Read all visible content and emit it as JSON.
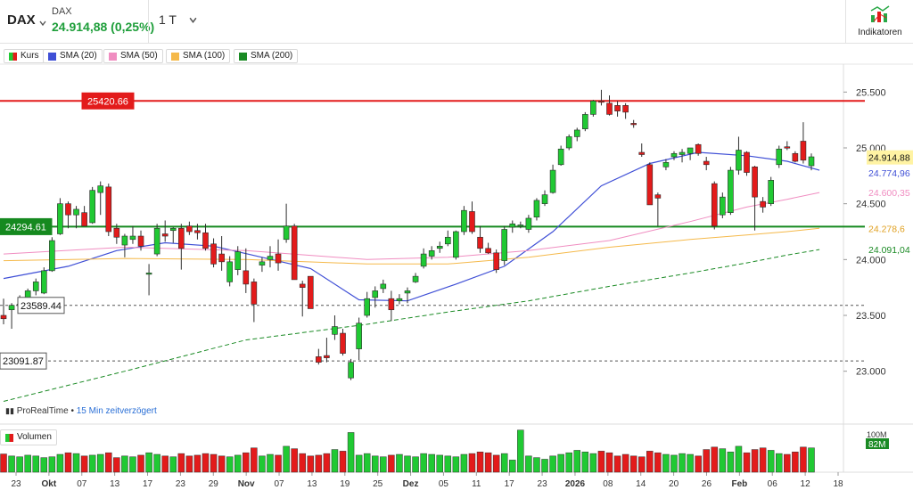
{
  "header": {
    "symbol": "DAX",
    "name": "DAX",
    "price_change": "24.914,88 (0,25%)",
    "period": "1 T",
    "period_icon": "chevron-down-icon",
    "indicators_label": "Indikatoren",
    "indicators_icon": "indicators-icon"
  },
  "legend": {
    "items": [
      {
        "label": "Kurs",
        "color": "#20c933",
        "color2": "#e31b1b"
      },
      {
        "label": "SMA (20)",
        "color": "#3f4fd6"
      },
      {
        "label": "SMA (50)",
        "color": "#f08dc1"
      },
      {
        "label": "SMA (100)",
        "color": "#f5b94a"
      },
      {
        "label": "SMA (200)",
        "color": "#1a8a24"
      }
    ],
    "volume": "Volumen"
  },
  "source": {
    "name": "ProRealTime",
    "delay": "15 Min zeitverzögert"
  },
  "chart_data": {
    "type": "candlestick",
    "x_tick_labels": [
      "23",
      "Okt",
      "07",
      "13",
      "17",
      "23",
      "29",
      "Nov",
      "07",
      "13",
      "19",
      "25",
      "Dez",
      "05",
      "11",
      "17",
      "23",
      "2026",
      "08",
      "14",
      "20",
      "26",
      "Feb",
      "06",
      "12",
      "18"
    ],
    "y_ticks": [
      "25.500",
      "25.000",
      "24.500",
      "24.000",
      "23.500",
      "23.000"
    ],
    "ylim": [
      22750,
      25750
    ],
    "candles": [
      {
        "o": 23500,
        "h": 23650,
        "l": 23420,
        "c": 23470
      },
      {
        "o": 23550,
        "h": 23610,
        "l": 23380,
        "c": 23590
      },
      {
        "o": 23590,
        "h": 23680,
        "l": 23520,
        "c": 23600
      },
      {
        "o": 23560,
        "h": 23740,
        "l": 23550,
        "c": 23720
      },
      {
        "o": 23720,
        "h": 23830,
        "l": 23680,
        "c": 23800
      },
      {
        "o": 23700,
        "h": 23930,
        "l": 23690,
        "c": 23900
      },
      {
        "o": 23900,
        "h": 24200,
        "l": 23890,
        "c": 24170
      },
      {
        "o": 24230,
        "h": 24550,
        "l": 24220,
        "c": 24500
      },
      {
        "o": 24500,
        "h": 24520,
        "l": 24280,
        "c": 24400
      },
      {
        "o": 24400,
        "h": 24480,
        "l": 24280,
        "c": 24450
      },
      {
        "o": 24420,
        "h": 24480,
        "l": 24300,
        "c": 24300
      },
      {
        "o": 24330,
        "h": 24650,
        "l": 24320,
        "c": 24620
      },
      {
        "o": 24600,
        "h": 24700,
        "l": 24400,
        "c": 24660
      },
      {
        "o": 24650,
        "h": 24680,
        "l": 24210,
        "c": 24250
      },
      {
        "o": 24280,
        "h": 24320,
        "l": 24140,
        "c": 24200
      },
      {
        "o": 24130,
        "h": 24230,
        "l": 24020,
        "c": 24210
      },
      {
        "o": 24180,
        "h": 24300,
        "l": 24140,
        "c": 24210
      },
      {
        "o": 24210,
        "h": 24260,
        "l": 24080,
        "c": 24120
      },
      {
        "o": 23880,
        "h": 23960,
        "l": 23680,
        "c": 23880
      },
      {
        "o": 24050,
        "h": 24320,
        "l": 24030,
        "c": 24280
      },
      {
        "o": 24230,
        "h": 24350,
        "l": 24160,
        "c": 24210
      },
      {
        "o": 24260,
        "h": 24290,
        "l": 24150,
        "c": 24280
      },
      {
        "o": 24280,
        "h": 24320,
        "l": 23910,
        "c": 24100
      },
      {
        "o": 24300,
        "h": 24340,
        "l": 24220,
        "c": 24250
      },
      {
        "o": 24260,
        "h": 24320,
        "l": 24180,
        "c": 24240
      },
      {
        "o": 24240,
        "h": 24320,
        "l": 24080,
        "c": 24100
      },
      {
        "o": 24140,
        "h": 24190,
        "l": 23930,
        "c": 23960
      },
      {
        "o": 24050,
        "h": 24210,
        "l": 23900,
        "c": 23980
      },
      {
        "o": 23800,
        "h": 24030,
        "l": 23760,
        "c": 23980
      },
      {
        "o": 23910,
        "h": 24120,
        "l": 23860,
        "c": 24070
      },
      {
        "o": 23900,
        "h": 24100,
        "l": 23700,
        "c": 23780
      },
      {
        "o": 23800,
        "h": 23830,
        "l": 23440,
        "c": 23600
      },
      {
        "o": 23950,
        "h": 24020,
        "l": 23890,
        "c": 23980
      },
      {
        "o": 24000,
        "h": 24120,
        "l": 23930,
        "c": 24030
      },
      {
        "o": 24050,
        "h": 24180,
        "l": 23900,
        "c": 23970
      },
      {
        "o": 24180,
        "h": 24500,
        "l": 24150,
        "c": 24300
      },
      {
        "o": 24300,
        "h": 24320,
        "l": 23820,
        "c": 23820
      },
      {
        "o": 23780,
        "h": 23810,
        "l": 23490,
        "c": 23750
      },
      {
        "o": 23850,
        "h": 23850,
        "l": 23560,
        "c": 23560
      },
      {
        "o": 23130,
        "h": 23200,
        "l": 23060,
        "c": 23080
      },
      {
        "o": 23140,
        "h": 23300,
        "l": 23080,
        "c": 23120
      },
      {
        "o": 23330,
        "h": 23500,
        "l": 23280,
        "c": 23400
      },
      {
        "o": 23340,
        "h": 23380,
        "l": 23140,
        "c": 23160
      },
      {
        "o": 22940,
        "h": 23110,
        "l": 22920,
        "c": 23080
      },
      {
        "o": 23200,
        "h": 23480,
        "l": 23100,
        "c": 23430
      },
      {
        "o": 23500,
        "h": 23710,
        "l": 23480,
        "c": 23650
      },
      {
        "o": 23660,
        "h": 23760,
        "l": 23570,
        "c": 23720
      },
      {
        "o": 23740,
        "h": 23820,
        "l": 23700,
        "c": 23780
      },
      {
        "o": 23650,
        "h": 23720,
        "l": 23450,
        "c": 23550
      },
      {
        "o": 23630,
        "h": 23690,
        "l": 23600,
        "c": 23650
      },
      {
        "o": 23700,
        "h": 23750,
        "l": 23610,
        "c": 23720
      },
      {
        "o": 23800,
        "h": 23880,
        "l": 23790,
        "c": 23850
      },
      {
        "o": 23940,
        "h": 24100,
        "l": 23920,
        "c": 24050
      },
      {
        "o": 24030,
        "h": 24120,
        "l": 24000,
        "c": 24080
      },
      {
        "o": 24100,
        "h": 24160,
        "l": 24060,
        "c": 24120
      },
      {
        "o": 24140,
        "h": 24260,
        "l": 24120,
        "c": 24200
      },
      {
        "o": 24020,
        "h": 24260,
        "l": 24000,
        "c": 24250
      },
      {
        "o": 24250,
        "h": 24480,
        "l": 24220,
        "c": 24440
      },
      {
        "o": 24430,
        "h": 24520,
        "l": 24230,
        "c": 24250
      },
      {
        "o": 24200,
        "h": 24300,
        "l": 24060,
        "c": 24100
      },
      {
        "o": 24100,
        "h": 24150,
        "l": 24050,
        "c": 24060
      },
      {
        "o": 24060,
        "h": 24090,
        "l": 23880,
        "c": 23910
      },
      {
        "o": 23990,
        "h": 24300,
        "l": 23950,
        "c": 24270
      },
      {
        "o": 24290,
        "h": 24350,
        "l": 24240,
        "c": 24320
      },
      {
        "o": 24310,
        "h": 24340,
        "l": 24280,
        "c": 24310
      },
      {
        "o": 24270,
        "h": 24400,
        "l": 24240,
        "c": 24370
      },
      {
        "o": 24380,
        "h": 24550,
        "l": 24350,
        "c": 24530
      },
      {
        "o": 24500,
        "h": 24620,
        "l": 24480,
        "c": 24580
      },
      {
        "o": 24600,
        "h": 24850,
        "l": 24590,
        "c": 24800
      },
      {
        "o": 24850,
        "h": 25020,
        "l": 24840,
        "c": 24990
      },
      {
        "o": 25000,
        "h": 25120,
        "l": 24980,
        "c": 25100
      },
      {
        "o": 25100,
        "h": 25180,
        "l": 25060,
        "c": 25160
      },
      {
        "o": 25170,
        "h": 25320,
        "l": 25150,
        "c": 25300
      },
      {
        "o": 25300,
        "h": 25430,
        "l": 25280,
        "c": 25420
      },
      {
        "o": 25420,
        "h": 25520,
        "l": 25380,
        "c": 25410
      },
      {
        "o": 25400,
        "h": 25470,
        "l": 25290,
        "c": 25300
      },
      {
        "o": 25380,
        "h": 25420,
        "l": 25280,
        "c": 25330
      },
      {
        "o": 25380,
        "h": 25400,
        "l": 25260,
        "c": 25320
      },
      {
        "o": 25220,
        "h": 25250,
        "l": 25180,
        "c": 25210
      },
      {
        "o": 24960,
        "h": 25040,
        "l": 24920,
        "c": 24940
      },
      {
        "o": 24850,
        "h": 24870,
        "l": 24500,
        "c": 24490
      },
      {
        "o": 24580,
        "h": 24600,
        "l": 24300,
        "c": 24550
      },
      {
        "o": 24830,
        "h": 24900,
        "l": 24800,
        "c": 24870
      },
      {
        "o": 24920,
        "h": 24970,
        "l": 24890,
        "c": 24950
      },
      {
        "o": 24940,
        "h": 24990,
        "l": 24870,
        "c": 24960
      },
      {
        "o": 24950,
        "h": 25000,
        "l": 24890,
        "c": 25000
      },
      {
        "o": 25030,
        "h": 25040,
        "l": 24930,
        "c": 24950
      },
      {
        "o": 24880,
        "h": 24920,
        "l": 24800,
        "c": 24850
      },
      {
        "o": 24680,
        "h": 24700,
        "l": 24270,
        "c": 24300
      },
      {
        "o": 24400,
        "h": 24600,
        "l": 24370,
        "c": 24560
      },
      {
        "o": 24420,
        "h": 24830,
        "l": 24400,
        "c": 24800
      },
      {
        "o": 24800,
        "h": 25100,
        "l": 24760,
        "c": 24980
      },
      {
        "o": 24960,
        "h": 24970,
        "l": 24750,
        "c": 24780
      },
      {
        "o": 24830,
        "h": 24840,
        "l": 24260,
        "c": 24560
      },
      {
        "o": 24520,
        "h": 24560,
        "l": 24420,
        "c": 24470
      },
      {
        "o": 24500,
        "h": 24740,
        "l": 24480,
        "c": 24710
      },
      {
        "o": 24850,
        "h": 25020,
        "l": 24820,
        "c": 24990
      },
      {
        "o": 25010,
        "h": 25060,
        "l": 24980,
        "c": 25000
      },
      {
        "o": 24950,
        "h": 24970,
        "l": 24870,
        "c": 24880
      },
      {
        "o": 25060,
        "h": 25230,
        "l": 24860,
        "c": 24890
      },
      {
        "o": 24840,
        "h": 24950,
        "l": 24800,
        "c": 24920
      }
    ],
    "series": [
      {
        "name": "SMA (20)",
        "color": "#3f4fd6",
        "values": [
          [
            0,
            23830
          ],
          [
            8,
            23940
          ],
          [
            14,
            24080
          ],
          [
            20,
            24150
          ],
          [
            26,
            24120
          ],
          [
            32,
            24020
          ],
          [
            38,
            23920
          ],
          [
            44,
            23640
          ],
          [
            50,
            23630
          ],
          [
            56,
            23780
          ],
          [
            62,
            23940
          ],
          [
            68,
            24250
          ],
          [
            74,
            24660
          ],
          [
            80,
            24860
          ],
          [
            86,
            24960
          ],
          [
            92,
            24930
          ],
          [
            97,
            24880
          ],
          [
            101,
            24800
          ]
        ]
      },
      {
        "name": "SMA (50)",
        "color": "#f08dc1",
        "values": [
          [
            0,
            24050
          ],
          [
            15,
            24110
          ],
          [
            30,
            24080
          ],
          [
            45,
            24000
          ],
          [
            55,
            24020
          ],
          [
            65,
            24080
          ],
          [
            75,
            24170
          ],
          [
            85,
            24340
          ],
          [
            92,
            24470
          ],
          [
            97,
            24540
          ],
          [
            101,
            24600
          ]
        ]
      },
      {
        "name": "SMA (100)",
        "color": "#f5b94a",
        "values": [
          [
            0,
            23990
          ],
          [
            15,
            24010
          ],
          [
            30,
            24000
          ],
          [
            45,
            23960
          ],
          [
            55,
            23960
          ],
          [
            65,
            24020
          ],
          [
            75,
            24110
          ],
          [
            85,
            24180
          ],
          [
            92,
            24220
          ],
          [
            97,
            24250
          ],
          [
            101,
            24280
          ]
        ]
      },
      {
        "name": "SMA (200)",
        "color": "#1a8a24",
        "values": [
          [
            0,
            22730
          ],
          [
            15,
            23000
          ],
          [
            30,
            23280
          ],
          [
            45,
            23420
          ],
          [
            55,
            23530
          ],
          [
            65,
            23630
          ],
          [
            75,
            23760
          ],
          [
            85,
            23880
          ],
          [
            92,
            23970
          ],
          [
            97,
            24040
          ],
          [
            101,
            24090
          ]
        ]
      }
    ],
    "levels": [
      {
        "value": 25420.66,
        "label": "25420.66",
        "color": "#e31b1b",
        "style": "solid"
      },
      {
        "value": 24294.61,
        "label": "24294.61",
        "color": "#15891f",
        "style": "solid"
      },
      {
        "value": 23589.44,
        "label": "23589.44",
        "color": "#555555",
        "style": "dashed"
      },
      {
        "value": 23091.87,
        "label": "23091.87",
        "color": "#555555",
        "style": "dashed"
      }
    ],
    "right_labels": [
      {
        "value": 24914.88,
        "label": "24.914,88",
        "bg": "#fff3a3",
        "fg": "#111111"
      },
      {
        "value": 24774.96,
        "label": "24.774,96",
        "bg": "#ffffff",
        "fg": "#3f4fd6"
      },
      {
        "value": 24600.35,
        "label": "24.600,35",
        "bg": "#ffffff",
        "fg": "#f08dc1"
      },
      {
        "value": 24278.6,
        "label": "24.278,6",
        "bg": "#ffffff",
        "fg": "#e0a020"
      },
      {
        "value": 24091.04,
        "label": "24.091,04",
        "bg": "#ffffff",
        "fg": "#1a8a24"
      }
    ],
    "volume": {
      "ticks": [
        "100M",
        "82M"
      ],
      "max": 110,
      "values": [
        45,
        40,
        38,
        42,
        40,
        36,
        38,
        44,
        48,
        46,
        40,
        42,
        44,
        48,
        36,
        40,
        38,
        42,
        48,
        44,
        40,
        38,
        46,
        40,
        42,
        46,
        44,
        40,
        38,
        42,
        48,
        60,
        40,
        44,
        42,
        64,
        58,
        46,
        40,
        42,
        46,
        56,
        52,
        98,
        42,
        46,
        40,
        38,
        42,
        44,
        40,
        38,
        46,
        44,
        42,
        40,
        38,
        44,
        46,
        50,
        48,
        42,
        46,
        30,
        104,
        40,
        36,
        32,
        40,
        44,
        48,
        54,
        50,
        46,
        52,
        48,
        40,
        44,
        40,
        38,
        52,
        48,
        44,
        42,
        46,
        44,
        40,
        56,
        62,
        58,
        50,
        64,
        48,
        56,
        60,
        54,
        46,
        44,
        50,
        62,
        60,
        62
      ]
    }
  }
}
